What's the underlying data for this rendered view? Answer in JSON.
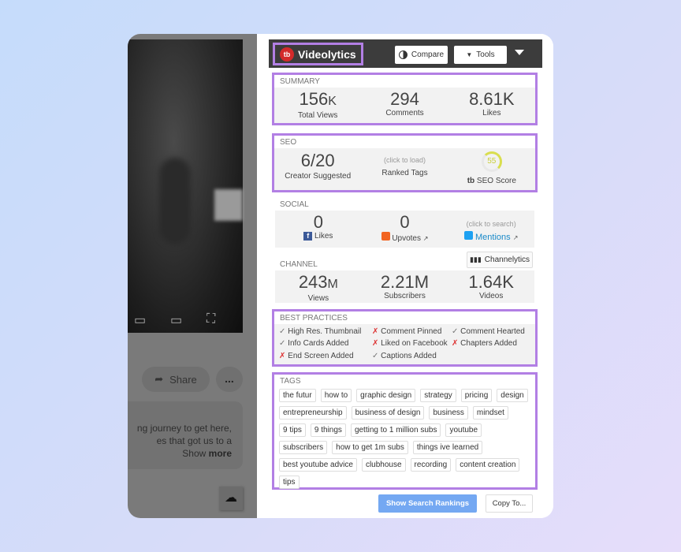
{
  "colors": {
    "accent_border": "#b27fe4",
    "header_bg": "#3c3c3c",
    "primary_button": "#74a8f2",
    "fail": "#dd3333"
  },
  "video": {
    "share_label": "Share",
    "more_label": "...",
    "description": "ng journey to get here, es that got us to a",
    "show_more_prefix": "Show ",
    "show_more_bold": "more"
  },
  "header": {
    "brand": "Videolytics",
    "logo_text": "tb",
    "compare": "Compare",
    "tools": "Tools"
  },
  "summary": {
    "label": "SUMMARY",
    "items": [
      {
        "value": "156",
        "unit": "K",
        "label": "Total Views"
      },
      {
        "value": "294",
        "label": "Comments"
      },
      {
        "value": "8.61K",
        "label": "Likes"
      }
    ]
  },
  "seo": {
    "label": "SEO",
    "creator_value": "6/20",
    "creator_label": "Creator Suggested",
    "ranked_hint": "(click to load)",
    "ranked_label": "Ranked Tags",
    "score": "55",
    "score_label": "SEO Score"
  },
  "social": {
    "label": "SOCIAL",
    "likes_value": "0",
    "likes_label": "Likes",
    "upvotes_value": "0",
    "upvotes_label": "Upvotes",
    "mentions_hint": "(click to search)",
    "mentions_label": "Mentions"
  },
  "channel": {
    "label": "CHANNEL",
    "button": "Channelytics",
    "items": [
      {
        "value": "243",
        "unit": "M",
        "label": "Views"
      },
      {
        "value": "2.21M",
        "label": "Subscribers"
      },
      {
        "value": "1.64K",
        "label": "Videos"
      }
    ]
  },
  "best_practices": {
    "label": "BEST PRACTICES",
    "items": [
      {
        "text": "High Res. Thumbnail",
        "pass": true
      },
      {
        "text": "Comment Pinned",
        "pass": false
      },
      {
        "text": "Comment Hearted",
        "pass": true
      },
      {
        "text": "Info Cards Added",
        "pass": true
      },
      {
        "text": "Liked on Facebook",
        "pass": false
      },
      {
        "text": "Chapters Added",
        "pass": false
      },
      {
        "text": "End Screen Added",
        "pass": false
      },
      {
        "text": "Captions Added",
        "pass": true
      }
    ]
  },
  "tags": {
    "label": "TAGS",
    "items": [
      "the futur",
      "how to",
      "graphic design",
      "strategy",
      "pricing",
      "design",
      "entrepreneurship",
      "business of design",
      "business",
      "mindset",
      "9 tips",
      "9 things",
      "getting to 1 million subs",
      "youtube",
      "subscribers",
      "how to get 1m subs",
      "things ive learned",
      "best youtube advice",
      "clubhouse",
      "recording",
      "content creation",
      "tips"
    ]
  },
  "actions": {
    "show_rankings": "Show Search Rankings",
    "copy_to": "Copy To..."
  }
}
